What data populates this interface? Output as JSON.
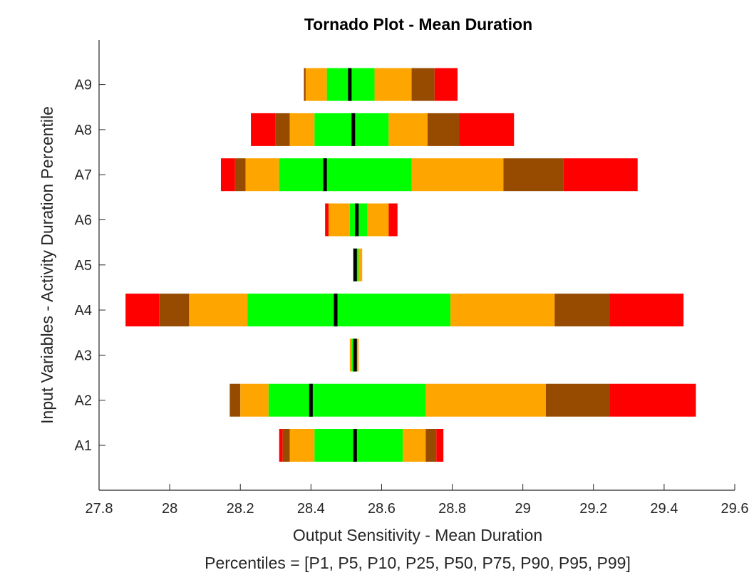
{
  "chart_data": {
    "type": "bar",
    "orientation": "horizontal",
    "title": "Tornado Plot - Mean Duration",
    "xlabel": "Output Sensitivity - Mean Duration",
    "ylabel": "Input Variables - Activity Duration Percentile",
    "note": "Percentiles = [P1, P5, P10, P25, P50, P75, P90, P95, P99]",
    "xlim": [
      27.8,
      29.6
    ],
    "xticks": [
      "27.8",
      "28",
      "28.2",
      "28.4",
      "28.6",
      "28.8",
      "29",
      "29.2",
      "29.4",
      "29.6"
    ],
    "grid": false,
    "categories": [
      "A1",
      "A2",
      "A3",
      "A4",
      "A5",
      "A6",
      "A7",
      "A8",
      "A9"
    ],
    "percentile_labels": [
      "P1",
      "P5",
      "P10",
      "P25",
      "P50",
      "P75",
      "P90",
      "P95",
      "P99"
    ],
    "segment_colors": {
      "p1_p5": "#ff0000",
      "p5_p10": "#964b00",
      "p10_p25": "#ffa500",
      "p25_p75": "#00ff00",
      "p75_p90": "#ffa500",
      "p90_p95": "#964b00",
      "p95_p99": "#ff0000",
      "median": "#000000"
    },
    "series": [
      {
        "category": "A1",
        "percentiles": [
          28.31,
          28.32,
          28.34,
          28.41,
          28.525,
          28.66,
          28.725,
          28.755,
          28.775
        ]
      },
      {
        "category": "A2",
        "percentiles": [
          28.17,
          28.17,
          28.2,
          28.28,
          28.4,
          28.725,
          29.065,
          29.245,
          29.49
        ]
      },
      {
        "category": "A3",
        "percentiles": [
          28.51,
          28.51,
          28.51,
          28.515,
          28.525,
          28.53,
          28.535,
          28.535,
          28.535
        ]
      },
      {
        "category": "A4",
        "percentiles": [
          27.875,
          27.97,
          28.055,
          28.22,
          28.47,
          28.795,
          29.09,
          29.245,
          29.455
        ]
      },
      {
        "category": "A5",
        "percentiles": [
          28.52,
          28.52,
          28.52,
          28.52,
          28.525,
          28.535,
          28.545,
          28.545,
          28.545
        ]
      },
      {
        "category": "A6",
        "percentiles": [
          28.44,
          28.45,
          28.45,
          28.51,
          28.53,
          28.56,
          28.62,
          28.62,
          28.645
        ]
      },
      {
        "category": "A7",
        "percentiles": [
          28.145,
          28.185,
          28.215,
          28.31,
          28.44,
          28.685,
          28.945,
          29.115,
          29.325
        ]
      },
      {
        "category": "A8",
        "percentiles": [
          28.23,
          28.3,
          28.34,
          28.41,
          28.52,
          28.62,
          28.73,
          28.82,
          28.975
        ]
      },
      {
        "category": "A9",
        "percentiles": [
          28.38,
          28.38,
          28.385,
          28.445,
          28.51,
          28.58,
          28.685,
          28.75,
          28.815
        ]
      }
    ]
  }
}
